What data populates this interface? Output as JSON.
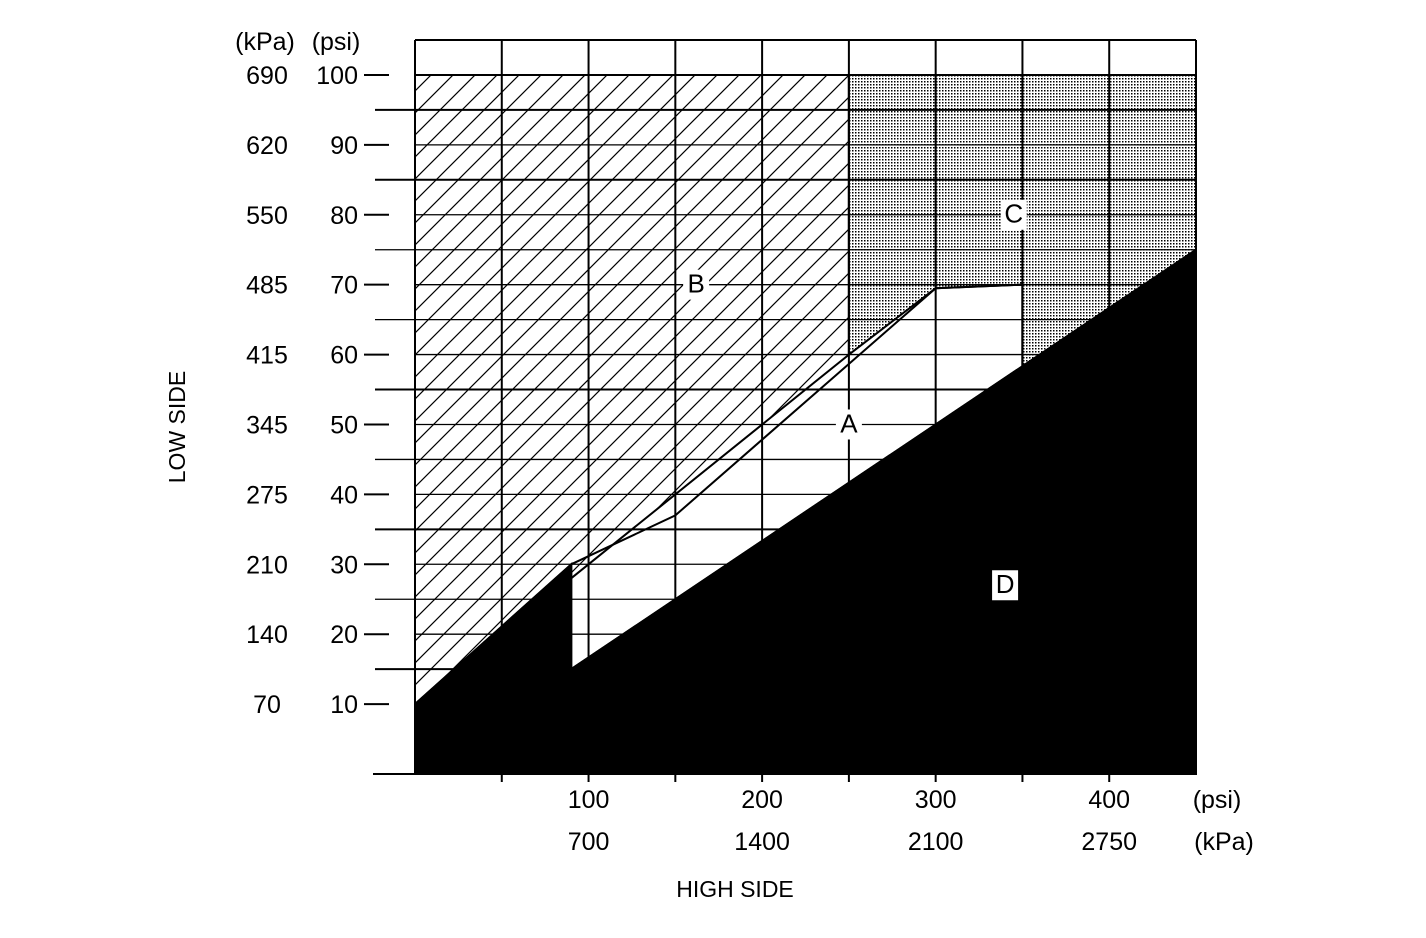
{
  "chart_data": {
    "type": "area",
    "x_axis": {
      "title": "HIGH SIDE",
      "unit_labels": [
        "(psi)",
        "(kPa)"
      ],
      "range_psi": [
        0,
        450
      ],
      "grid_step_psi": 50,
      "ticks": [
        {
          "psi": 100,
          "psi_label": "100",
          "kpa_label": "700"
        },
        {
          "psi": 200,
          "psi_label": "200",
          "kpa_label": "1400"
        },
        {
          "psi": 300,
          "psi_label": "300",
          "kpa_label": "2100"
        },
        {
          "psi": 400,
          "psi_label": "400",
          "kpa_label": "2750"
        }
      ]
    },
    "y_axis": {
      "title": "LOW SIDE",
      "unit_labels": [
        "(kPa)",
        "(psi)"
      ],
      "range_psi": [
        0,
        105
      ],
      "ticks": [
        {
          "psi": 10,
          "psi_label": "10",
          "kpa_label": "70"
        },
        {
          "psi": 20,
          "psi_label": "20",
          "kpa_label": "140"
        },
        {
          "psi": 30,
          "psi_label": "30",
          "kpa_label": "210"
        },
        {
          "psi": 40,
          "psi_label": "40",
          "kpa_label": "275"
        },
        {
          "psi": 50,
          "psi_label": "50",
          "kpa_label": "345"
        },
        {
          "psi": 60,
          "psi_label": "60",
          "kpa_label": "415"
        },
        {
          "psi": 70,
          "psi_label": "70",
          "kpa_label": "485"
        },
        {
          "psi": 80,
          "psi_label": "80",
          "kpa_label": "550"
        },
        {
          "psi": 90,
          "psi_label": "90",
          "kpa_label": "620"
        },
        {
          "psi": 100,
          "psi_label": "100",
          "kpa_label": "690"
        }
      ]
    },
    "regions": [
      {
        "label": "A",
        "fill": "none",
        "at": [
          250,
          50
        ],
        "polygon": [
          [
            90,
            30
          ],
          [
            90,
            15
          ],
          [
            350,
            54
          ],
          [
            350,
            70
          ],
          [
            300,
            69.5
          ],
          [
            150,
            37
          ],
          [
            90,
            30
          ]
        ]
      },
      {
        "label": "B",
        "fill": "hatch",
        "at": [
          162,
          70
        ],
        "polygon": [
          [
            0,
            100
          ],
          [
            250,
            100
          ],
          [
            250,
            60
          ],
          [
            0,
            10
          ]
        ]
      },
      {
        "label": "C",
        "fill": "stipple",
        "at": [
          345,
          80
        ],
        "polygon": [
          [
            250,
            100
          ],
          [
            450,
            100
          ],
          [
            450,
            75
          ],
          [
            350,
            56
          ],
          [
            350,
            70
          ],
          [
            300,
            69.5
          ],
          [
            250,
            60
          ]
        ]
      },
      {
        "label": "D",
        "fill": "solid",
        "at": [
          340,
          27
        ],
        "polygon": [
          [
            0,
            0
          ],
          [
            0,
            10
          ],
          [
            90,
            30
          ],
          [
            90,
            15
          ],
          [
            450,
            75
          ],
          [
            450,
            0
          ]
        ]
      }
    ],
    "colors": {
      "ink": "#000000",
      "background": "#ffffff"
    }
  }
}
